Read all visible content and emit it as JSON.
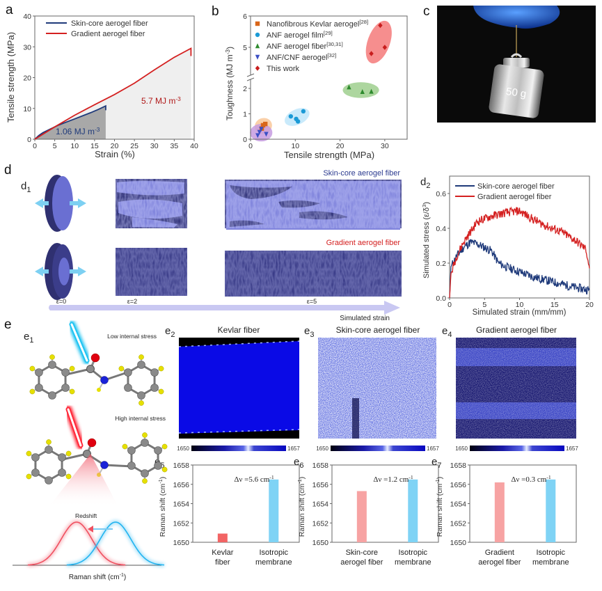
{
  "panels": {
    "a": "a",
    "b": "b",
    "c": "c",
    "d": "d",
    "d1": "d",
    "d1_sub": "1",
    "d2": "d",
    "d2_sub": "2",
    "e": "e",
    "e1": "e",
    "e1_sub": "1",
    "e2": "e",
    "e2_sub": "2",
    "e3": "e",
    "e3_sub": "3",
    "e4": "e",
    "e4_sub": "4",
    "e5": "e",
    "e5_sub": "5",
    "e6": "e",
    "e6_sub": "6",
    "e7": "e",
    "e7_sub": "7"
  },
  "photo_c": {
    "weight_label": "50 g"
  },
  "simulation_d1": {
    "row_labels": [
      "Skin-core aerogel fiber",
      "Gradient aerogel fiber"
    ],
    "row_colors": [
      "#2b3a8f",
      "#d42020"
    ],
    "strain_labels": [
      "ε=0",
      "ε=2",
      "ε=5"
    ],
    "arrow_label": "Simulated strain"
  },
  "molecule_e1": {
    "low_label": "Low internal stress",
    "high_label": "High internal stress",
    "shift_label": "Redshift",
    "xlabel": "Raman shift (cm",
    "xlabel_sup": "-1",
    "xlabel_end": ")"
  },
  "maps": [
    {
      "title": "Kevlar fiber",
      "cbar_min": "1650",
      "cbar_max": "1657"
    },
    {
      "title": "Skin-core aerogel fiber",
      "cbar_min": "1650",
      "cbar_max": "1657"
    },
    {
      "title": "Gradient aerogel fiber",
      "cbar_min": "1650",
      "cbar_max": "1657"
    }
  ],
  "chart_data": [
    {
      "id": "a",
      "type": "line",
      "xlabel": "Strain (%)",
      "ylabel": "Tensile strength (MPa)",
      "xlim": [
        0,
        40
      ],
      "ylim": [
        0,
        40
      ],
      "xticks": [
        0,
        5,
        10,
        15,
        20,
        25,
        30,
        35,
        40
      ],
      "yticks": [
        0,
        10,
        20,
        30,
        40
      ],
      "legend": "top-left",
      "series": [
        {
          "name": "Skin-core aerogel fiber",
          "color": "#1f3a7a",
          "x": [
            0,
            1,
            2,
            4,
            6,
            8,
            10,
            12,
            14,
            16,
            17.8,
            17.8
          ],
          "y": [
            0,
            1.2,
            2.1,
            3.4,
            4.6,
            5.6,
            6.6,
            7.6,
            8.6,
            9.7,
            10.8,
            9.4
          ]
        },
        {
          "name": "Gradient aerogel fiber",
          "color": "#d42020",
          "x": [
            0,
            5,
            10,
            15,
            20,
            25,
            30,
            35,
            39.2,
            39.2
          ],
          "y": [
            0,
            4.0,
            7.8,
            11.2,
            14.5,
            18.2,
            22.5,
            26.6,
            29.5,
            27.0
          ]
        }
      ],
      "annotations": [
        {
          "text": "1.06 MJ m",
          "sup": "-3",
          "color": "#1f3a7a"
        },
        {
          "text": "5.7 MJ m",
          "sup": "-3",
          "color": "#b01818"
        }
      ]
    },
    {
      "id": "b",
      "type": "scatter",
      "xlabel": "Tensile strength (MPa)",
      "ylabel": "Toughness (MJ m",
      "ylabel_sup": "-3",
      "ylabel_end": ")",
      "xlim": [
        0,
        35
      ],
      "ylim": [
        0,
        6
      ],
      "y_axis_break": [
        2.3,
        4.5
      ],
      "xticks": [
        0,
        10,
        20,
        30
      ],
      "yticks": [
        0,
        1,
        2,
        5,
        6
      ],
      "legend": "top-left",
      "series": [
        {
          "name": "Nanofibrous Kevlar aerogel",
          "ref": "[28]",
          "marker": "square",
          "color": "#d9661a",
          "ellipse": "#f9c89a",
          "x": [
            2.5,
            2.8,
            3.3
          ],
          "y": [
            0.42,
            0.55,
            0.6
          ]
        },
        {
          "name": "ANF aerogel film",
          "ref": "[29]",
          "marker": "circle",
          "color": "#1b9ad6",
          "ellipse": "#bfe6fa",
          "x": [
            9.0,
            10.2,
            10.6,
            11.8
          ],
          "y": [
            0.9,
            0.8,
            0.7,
            1.1
          ]
        },
        {
          "name": "ANF aerogel fiber",
          "ref": "[30,31]",
          "marker": "triangle-up",
          "color": "#2e8b2e",
          "ellipse": "#9fcf8e",
          "x": [
            22.0,
            25.0,
            27.0
          ],
          "y": [
            2.05,
            1.87,
            1.88
          ]
        },
        {
          "name": "ANF/CNF aerogel",
          "ref": "[32]",
          "marker": "triangle-down",
          "color": "#3b4fc4",
          "ellipse": "#c59be0",
          "x": [
            1.6,
            2.0,
            2.4,
            3.5
          ],
          "y": [
            0.15,
            0.28,
            0.4,
            0.2
          ]
        },
        {
          "name": "This work",
          "ref": "",
          "marker": "diamond",
          "color": "#c81e1e",
          "ellipse": "#f47a7a",
          "x": [
            27.0,
            29.0,
            30.0
          ],
          "y": [
            4.8,
            5.7,
            5.0
          ]
        }
      ]
    },
    {
      "id": "d2",
      "type": "line",
      "xlabel": "Simulated strain (mm/mm)",
      "ylabel": "Simulated stress (ε/δ",
      "ylabel_sup": "3",
      "ylabel_end": ")",
      "xlim": [
        0,
        20
      ],
      "ylim": [
        0,
        0.7
      ],
      "xticks": [
        0,
        5,
        10,
        15,
        20
      ],
      "yticks": [
        0.0,
        0.2,
        0.4,
        0.6
      ],
      "legend": "top-left",
      "series": [
        {
          "name": "Skin-core aerogel fiber",
          "color": "#1f3a7a",
          "x": [
            0,
            0.2,
            1,
            2,
            3,
            4,
            5,
            6,
            7,
            8,
            10,
            12,
            14,
            16,
            18,
            20
          ],
          "y": [
            0,
            0.18,
            0.24,
            0.29,
            0.32,
            0.31,
            0.29,
            0.27,
            0.2,
            0.18,
            0.15,
            0.12,
            0.1,
            0.08,
            0.06,
            0.045
          ]
        },
        {
          "name": "Gradient aerogel fiber",
          "color": "#d42020",
          "x": [
            0,
            0.2,
            1,
            2,
            3,
            4,
            6,
            8,
            10,
            12,
            14,
            16,
            18,
            19.5,
            20
          ],
          "y": [
            0,
            0.14,
            0.24,
            0.32,
            0.38,
            0.44,
            0.47,
            0.49,
            0.5,
            0.45,
            0.41,
            0.38,
            0.33,
            0.28,
            0.17
          ]
        }
      ]
    },
    {
      "id": "e5",
      "type": "bar",
      "ylabel": "Raman shift (cm",
      "ylabel_sup": "-1",
      "ylabel_end": ")",
      "ylim": [
        1650,
        1658
      ],
      "yticks": [
        1650,
        1652,
        1654,
        1656,
        1658
      ],
      "categories": [
        [
          "Kevlar",
          "fiber"
        ],
        [
          "Isotropic",
          "membrane"
        ]
      ],
      "values": [
        1650.9,
        1656.5
      ],
      "colors": [
        "#f26464",
        "#7fd3f5"
      ],
      "annotation": "Δν =5.6 cm",
      "annotation_sup": "-1"
    },
    {
      "id": "e6",
      "type": "bar",
      "ylabel": "Raman shift (cm",
      "ylabel_sup": "-1",
      "ylabel_end": ")",
      "ylim": [
        1650,
        1658
      ],
      "yticks": [
        1650,
        1652,
        1654,
        1656,
        1658
      ],
      "categories": [
        [
          "Skin-core",
          "aerogel fiber"
        ],
        [
          "Isotropic",
          "membrane"
        ]
      ],
      "values": [
        1655.3,
        1656.5
      ],
      "colors": [
        "#f7a3a3",
        "#7fd3f5"
      ],
      "annotation": "Δν =1.2 cm",
      "annotation_sup": "-1"
    },
    {
      "id": "e7",
      "type": "bar",
      "ylabel": "Raman shift (cm",
      "ylabel_sup": "-1",
      "ylabel_end": ")",
      "ylim": [
        1650,
        1658
      ],
      "yticks": [
        1650,
        1652,
        1654,
        1656,
        1658
      ],
      "categories": [
        [
          "Gradient",
          "aerogel fiber"
        ],
        [
          "Isotropic",
          "membrane"
        ]
      ],
      "values": [
        1656.2,
        1656.5
      ],
      "colors": [
        "#f7a3a3",
        "#7fd3f5"
      ],
      "annotation": "Δν =0.3 cm",
      "annotation_sup": "-1"
    }
  ]
}
